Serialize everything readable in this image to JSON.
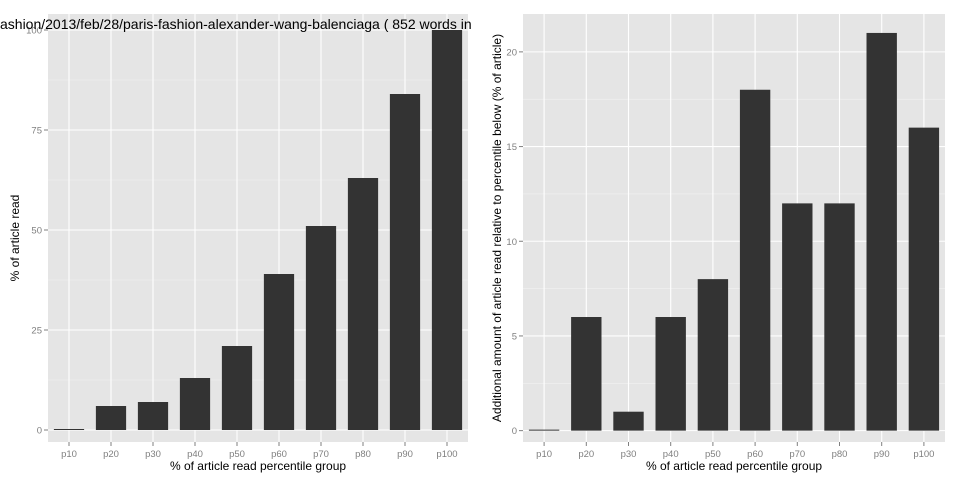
{
  "chart_data": [
    {
      "type": "bar",
      "title": "ashion/2013/feb/28/paris-fashion-alexander-wang-balenciaga ( 852 words in",
      "xlabel": "% of article read percentile group",
      "ylabel": "% of article read",
      "categories": [
        "p10",
        "p20",
        "p30",
        "p40",
        "p50",
        "p60",
        "p70",
        "p80",
        "p90",
        "p100"
      ],
      "values": [
        0,
        6,
        7,
        13,
        21,
        39,
        51,
        63,
        84,
        100
      ],
      "ylim": [
        -3,
        104
      ],
      "yticks": [
        0,
        25,
        50,
        75,
        100
      ],
      "grid": true,
      "colors": {
        "panel": "#e5e5e5",
        "bar": "#333333",
        "grid": "#ffffff"
      }
    },
    {
      "type": "bar",
      "title": "",
      "xlabel": "% of article read percentile group",
      "ylabel": "Additional amount of article read relative to percentile below (% of article)",
      "categories": [
        "p10",
        "p20",
        "p30",
        "p40",
        "p50",
        "p60",
        "p70",
        "p80",
        "p90",
        "p100"
      ],
      "values": [
        0,
        6,
        1,
        6,
        8,
        18,
        12,
        12,
        21,
        16
      ],
      "ylim": [
        -0.6,
        22
      ],
      "yticks": [
        0,
        5,
        10,
        15,
        20
      ],
      "grid": true,
      "colors": {
        "panel": "#e5e5e5",
        "bar": "#333333",
        "grid": "#ffffff"
      }
    }
  ]
}
